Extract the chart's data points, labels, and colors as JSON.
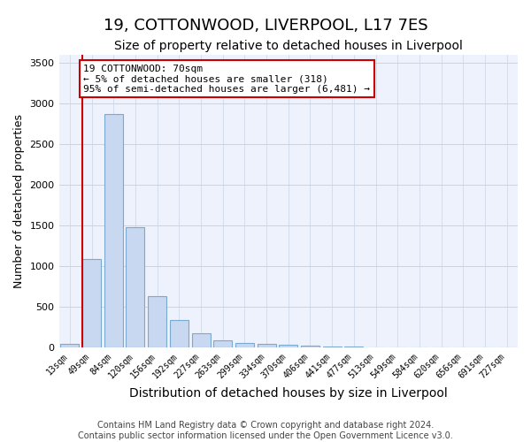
{
  "title": "19, COTTONWOOD, LIVERPOOL, L17 7ES",
  "subtitle": "Size of property relative to detached houses in Liverpool",
  "xlabel": "Distribution of detached houses by size in Liverpool",
  "ylabel": "Number of detached properties",
  "bar_color": "#c8d8f0",
  "bar_edge_color": "#7aaad0",
  "categories": [
    "13sqm",
    "49sqm",
    "84sqm",
    "120sqm",
    "156sqm",
    "192sqm",
    "227sqm",
    "263sqm",
    "299sqm",
    "334sqm",
    "370sqm",
    "406sqm",
    "441sqm",
    "477sqm",
    "513sqm",
    "549sqm",
    "584sqm",
    "620sqm",
    "656sqm",
    "691sqm",
    "727sqm"
  ],
  "values": [
    50,
    1085,
    2870,
    1480,
    630,
    345,
    175,
    95,
    60,
    45,
    35,
    25,
    15,
    10,
    5,
    3,
    2,
    1,
    0,
    0,
    0
  ],
  "ylim": [
    0,
    3600
  ],
  "yticks": [
    0,
    500,
    1000,
    1500,
    2000,
    2500,
    3000,
    3500
  ],
  "red_line_x": 0.58,
  "annotation_text": "19 COTTONWOOD: 70sqm\n← 5% of detached houses are smaller (318)\n95% of semi-detached houses are larger (6,481) →",
  "red_line_color": "#cc0000",
  "annotation_box_edge": "#cc0000",
  "bg_color": "#eef2fc",
  "grid_color": "#c8d4e8",
  "title_fontsize": 13,
  "subtitle_fontsize": 10,
  "xlabel_fontsize": 10,
  "ylabel_fontsize": 9,
  "tick_fontsize": 8,
  "xtick_fontsize": 7,
  "footer_fontsize": 7,
  "footer_line1": "Contains HM Land Registry data © Crown copyright and database right 2024.",
  "footer_line2": "Contains public sector information licensed under the Open Government Licence v3.0."
}
